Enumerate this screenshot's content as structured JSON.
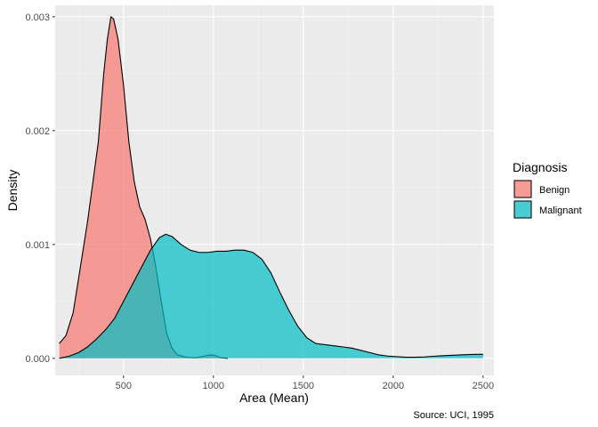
{
  "chart_data": {
    "type": "area",
    "title": "",
    "xlabel": "Area (Mean)",
    "ylabel": "Density",
    "caption": "Source: UCI, 1995",
    "xlim": [
      120,
      2560
    ],
    "ylim": [
      -0.00015,
      0.0031
    ],
    "x_ticks": [
      500,
      1000,
      1500,
      2000,
      2500
    ],
    "x_tick_labels": [
      "500",
      "1000",
      "1500",
      "2000",
      "2500"
    ],
    "y_ticks": [
      0,
      0.001,
      0.002,
      0.003
    ],
    "y_tick_labels": [
      "0.000",
      "0.001",
      "0.002",
      "0.003"
    ],
    "grid": true,
    "legend": {
      "title": "Diagnosis",
      "position": "right"
    },
    "series": [
      {
        "name": "Benign",
        "color": "#F8766D",
        "points": [
          [
            143,
            0.00013
          ],
          [
            180,
            0.0002
          ],
          [
            220,
            0.0004
          ],
          [
            260,
            0.0008
          ],
          [
            300,
            0.0012
          ],
          [
            330,
            0.00155
          ],
          [
            360,
            0.0019
          ],
          [
            390,
            0.0025
          ],
          [
            410,
            0.0028
          ],
          [
            430,
            0.003
          ],
          [
            445,
            0.00298
          ],
          [
            470,
            0.0028
          ],
          [
            500,
            0.0024
          ],
          [
            530,
            0.0019
          ],
          [
            560,
            0.00155
          ],
          [
            590,
            0.00133
          ],
          [
            620,
            0.00122
          ],
          [
            650,
            0.00105
          ],
          [
            680,
            0.0008
          ],
          [
            710,
            0.0005
          ],
          [
            740,
            0.00022
          ],
          [
            770,
            9e-05
          ],
          [
            800,
            3e-05
          ],
          [
            850,
            1e-05
          ],
          [
            900,
            5e-06
          ],
          [
            950,
            2e-05
          ],
          [
            985,
            3e-05
          ],
          [
            1010,
            2.5e-05
          ],
          [
            1040,
            5e-06
          ],
          [
            1080,
            0.0
          ]
        ]
      },
      {
        "name": "Malignant",
        "color": "#00BFC4",
        "points": [
          [
            143,
            0.0
          ],
          [
            200,
            2e-05
          ],
          [
            250,
            5e-05
          ],
          [
            300,
            0.0001
          ],
          [
            350,
            0.00017
          ],
          [
            400,
            0.00025
          ],
          [
            450,
            0.00035
          ],
          [
            500,
            0.0005
          ],
          [
            550,
            0.00065
          ],
          [
            600,
            0.0008
          ],
          [
            650,
            0.00095
          ],
          [
            700,
            0.00106
          ],
          [
            735,
            0.00109
          ],
          [
            770,
            0.00107
          ],
          [
            820,
            0.001
          ],
          [
            870,
            0.00095
          ],
          [
            920,
            0.00093
          ],
          [
            970,
            0.00093
          ],
          [
            1020,
            0.00094
          ],
          [
            1070,
            0.00094
          ],
          [
            1120,
            0.00095
          ],
          [
            1170,
            0.00095
          ],
          [
            1220,
            0.00093
          ],
          [
            1270,
            0.00087
          ],
          [
            1320,
            0.00075
          ],
          [
            1370,
            0.00058
          ],
          [
            1420,
            0.00042
          ],
          [
            1470,
            0.00028
          ],
          [
            1520,
            0.00018
          ],
          [
            1570,
            0.00013
          ],
          [
            1620,
            0.00012
          ],
          [
            1670,
            0.00011
          ],
          [
            1720,
            0.0001
          ],
          [
            1770,
            9e-05
          ],
          [
            1820,
            7e-05
          ],
          [
            1870,
            5e-05
          ],
          [
            1920,
            3e-05
          ],
          [
            1970,
            2e-05
          ],
          [
            2020,
            1.5e-05
          ],
          [
            2070,
            1e-05
          ],
          [
            2120,
            1e-05
          ],
          [
            2170,
            1.2e-05
          ],
          [
            2220,
            1.8e-05
          ],
          [
            2270,
            2.2e-05
          ],
          [
            2320,
            2.6e-05
          ],
          [
            2370,
            3e-05
          ],
          [
            2420,
            3.3e-05
          ],
          [
            2470,
            3.5e-05
          ],
          [
            2500,
            3.5e-05
          ]
        ]
      }
    ]
  }
}
